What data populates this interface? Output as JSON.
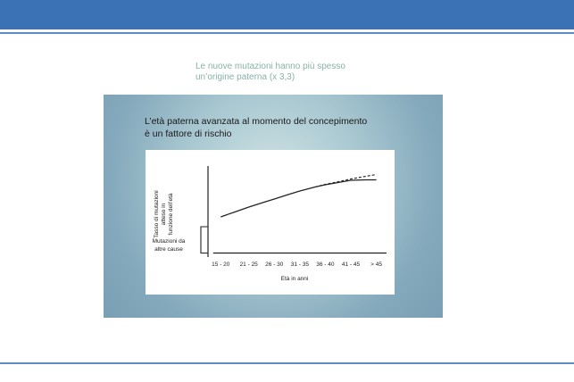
{
  "slide": {
    "subtitle_lines": [
      "Le nuove mutazioni hanno più spesso",
      "un’origine paterna (x 3,3)"
    ]
  },
  "figure": {
    "title_lines": [
      "L’età paterna avanzata al momento del concepimento",
      "è un fattore di rischio"
    ]
  },
  "colors": {
    "header_bar": "#3a72b5",
    "rule": "#5b8cc7",
    "subtitle_text": "#86b2a9",
    "figure_background": "#a9c8d1",
    "line": "#222222"
  },
  "chart_data": {
    "type": "line",
    "xlabel": "Età in anni",
    "ylabel_lines": [
      "Tasso di mutazioni",
      "atteso in",
      "funzione dell’età"
    ],
    "bracket_label_lines": [
      "Mutazioni da",
      "altre cause"
    ],
    "categories": [
      "15 - 20",
      "21 - 25",
      "26 - 30",
      "31 - 35",
      "36 - 40",
      "41 - 45",
      "> 45"
    ],
    "x": [
      17.5,
      23,
      28,
      33,
      38,
      43,
      48
    ],
    "ylim": [
      0,
      10
    ],
    "xlim": [
      15,
      50
    ],
    "grid": false,
    "series": [
      {
        "style": "solid",
        "points": [
          [
            17.5,
            4.3
          ],
          [
            20,
            4.8
          ],
          [
            23,
            5.4
          ],
          [
            26,
            5.95
          ],
          [
            28,
            6.3
          ],
          [
            31,
            6.85
          ],
          [
            33,
            7.2
          ],
          [
            36,
            7.65
          ],
          [
            38,
            7.9
          ],
          [
            41,
            8.2
          ],
          [
            43,
            8.4
          ],
          [
            46,
            8.45
          ],
          [
            48,
            8.45
          ]
        ]
      },
      {
        "style": "dashed",
        "points": [
          [
            36,
            7.65
          ],
          [
            38,
            7.95
          ],
          [
            41,
            8.3
          ],
          [
            43,
            8.55
          ],
          [
            46,
            8.85
          ],
          [
            48,
            9.05
          ]
        ]
      },
      {
        "style": "solid",
        "points": [
          [
            16,
            0.25
          ],
          [
            50,
            0.25
          ]
        ]
      }
    ],
    "bracket": {
      "from": 0.25,
      "to": 3.2
    }
  }
}
